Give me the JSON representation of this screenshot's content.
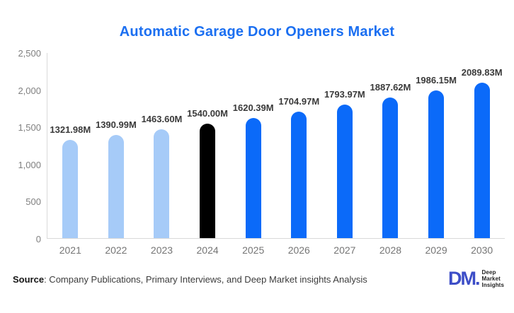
{
  "chart_data": {
    "type": "bar",
    "title": "Automatic Garage Door Openers Market",
    "categories": [
      "2021",
      "2022",
      "2023",
      "2024",
      "2025",
      "2026",
      "2027",
      "2028",
      "2029",
      "2030"
    ],
    "values": [
      1321.98,
      1390.99,
      1463.6,
      1540.0,
      1620.39,
      1704.97,
      1793.97,
      1887.62,
      1986.15,
      2089.83
    ],
    "value_labels": [
      "1321.98M",
      "1390.99M",
      "1463.60M",
      "1540.00M",
      "1620.39M",
      "1704.97M",
      "1793.97M",
      "1887.62M",
      "1986.15M",
      "2089.83M"
    ],
    "bar_colors": [
      "#a6cbf8",
      "#a6cbf8",
      "#a6cbf8",
      "#000000",
      "#0b6af9",
      "#0b6af9",
      "#0b6af9",
      "#0b6af9",
      "#0b6af9",
      "#0b6af9"
    ],
    "ylim": [
      0,
      2500
    ],
    "yticks": [
      {
        "value": 0,
        "label": "0"
      },
      {
        "value": 500,
        "label": "500"
      },
      {
        "value": 1000,
        "label": "1,000"
      },
      {
        "value": 1500,
        "label": "1,500"
      },
      {
        "value": 2000,
        "label": "2,000"
      },
      {
        "value": 2500,
        "label": "2,500"
      }
    ],
    "xlabel": "",
    "ylabel": "",
    "grid": false,
    "legend": "none",
    "title_color": "#1b6ff1",
    "axis_line_color": "#d9d9d9"
  },
  "footer": {
    "source_label": "Source",
    "source_text": ": Company Publications, Primary Interviews, and Deep Market insights Analysis",
    "logo": {
      "monogram": "DM.",
      "lines": [
        "Deep",
        "Market",
        "Insights"
      ]
    }
  }
}
